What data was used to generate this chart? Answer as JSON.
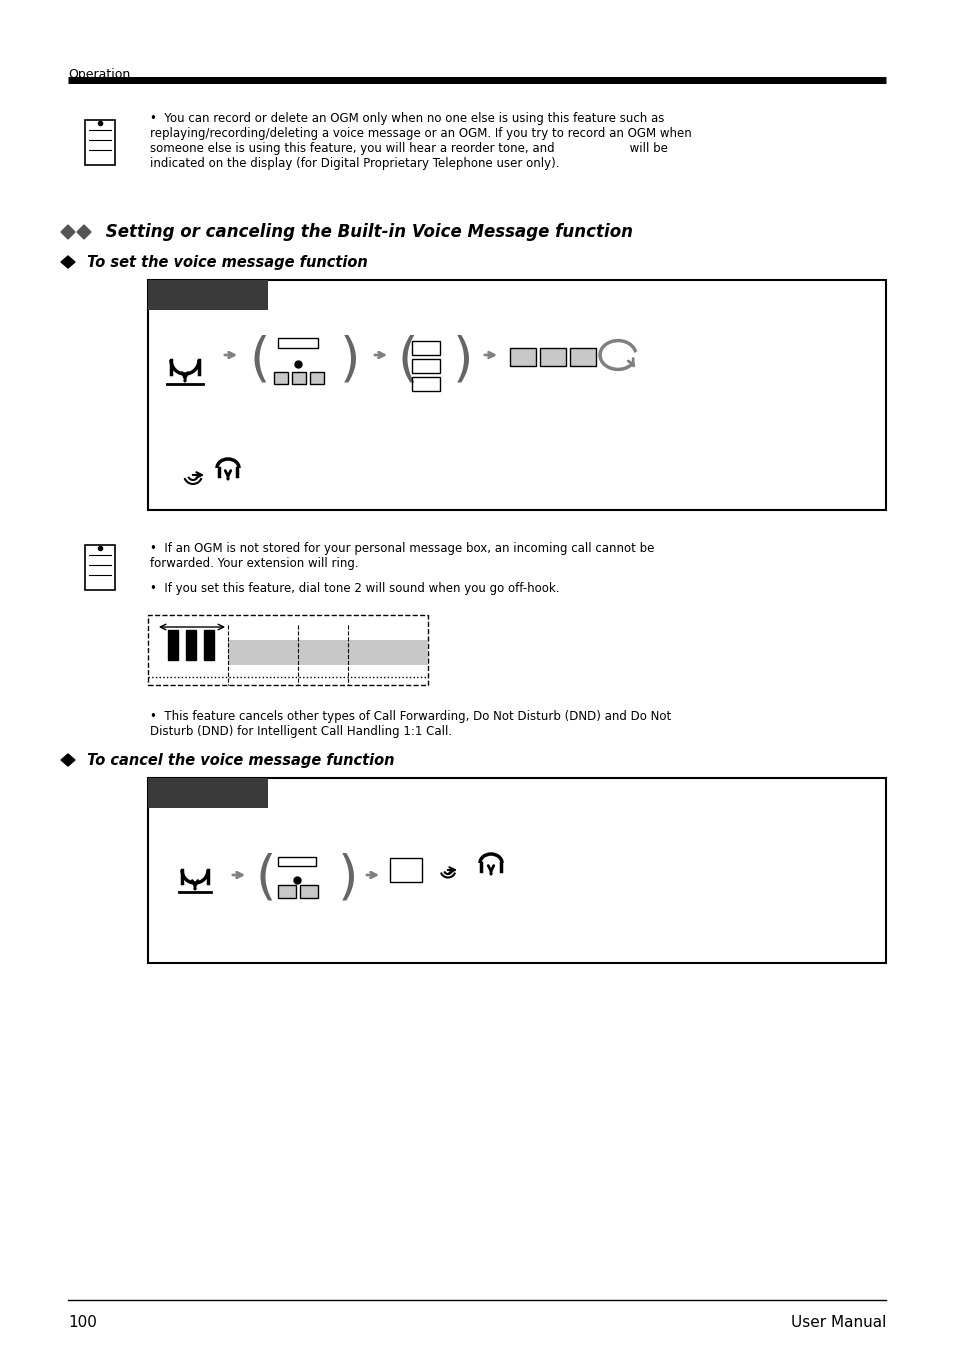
{
  "page_number": "100",
  "page_label": "User Manual",
  "header_label": "Operation",
  "section_title": "Setting or canceling the Built-in Voice Message function",
  "subsection1": "To set the voice message function",
  "subsection2": "To cancel the voice message function",
  "bullet1_text": "You can record or delete an OGM only when no one else is using this feature such as\nreplaying/recording/deleting a voice message or an OGM. If you try to record an OGM when\nsomeone else is using this feature, you will hear a reorder tone, and                    will be\nindicated on the display (for Digital Proprietary Telephone user only).",
  "bullet2a_text": "If an OGM is not stored for your personal message box, an incoming call cannot be\nforwarded. Your extension will ring.",
  "bullet2b_text": "If you set this feature, dial tone 2 will sound when you go off-hook.",
  "bullet3_text": "This feature cancels other types of Call Forwarding, Do Not Disturb (DND) and Do Not\nDisturb (DND) for Intelligent Call Handling 1:1 Call.",
  "bg_color": "#ffffff",
  "box_border_color": "#000000",
  "dark_header_color": "#3a3a3a",
  "light_gray": "#c8c8c8",
  "arrow_color": "#808080"
}
